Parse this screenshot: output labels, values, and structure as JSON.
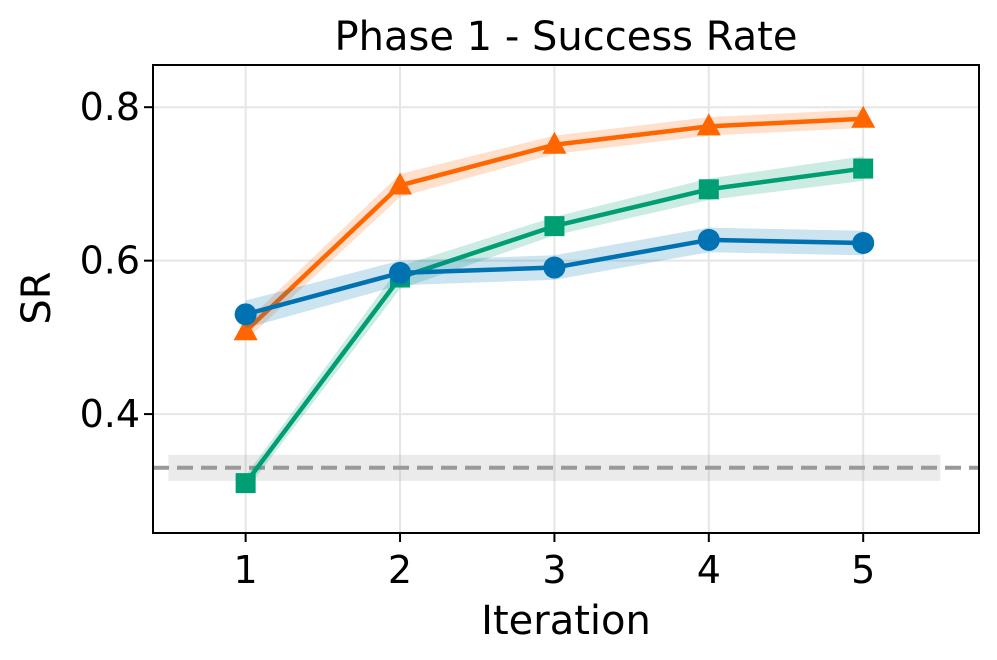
{
  "chart_data": {
    "type": "line",
    "title": "Phase 1 - Success Rate",
    "xlabel": "Iteration",
    "ylabel": "SR",
    "x": [
      1,
      2,
      3,
      4,
      5
    ],
    "xlim": [
      0.4,
      5.75
    ],
    "ylim": [
      0.245,
      0.855
    ],
    "xticks": [
      "1",
      "2",
      "3",
      "4",
      "5"
    ],
    "yticks": [
      0.4,
      0.6,
      0.8
    ],
    "ytick_labels": [
      "0.4",
      "0.6",
      "0.8"
    ],
    "grid": true,
    "series": [
      {
        "name": "orange-triangle",
        "color": "#ff6600",
        "marker": "triangle",
        "values": [
          0.508,
          0.698,
          0.751,
          0.775,
          0.785
        ],
        "band": [
          0.012,
          0.015,
          0.012,
          0.012,
          0.012
        ]
      },
      {
        "name": "green-square",
        "color": "#009e73",
        "marker": "square",
        "values": [
          0.31,
          0.578,
          0.645,
          0.693,
          0.72
        ],
        "band": [
          0.01,
          0.015,
          0.012,
          0.014,
          0.016
        ]
      },
      {
        "name": "blue-circle",
        "color": "#0072b2",
        "marker": "circle",
        "values": [
          0.53,
          0.584,
          0.591,
          0.627,
          0.623
        ],
        "band": [
          0.018,
          0.016,
          0.016,
          0.016,
          0.016
        ]
      }
    ],
    "baseline": {
      "value": 0.33,
      "color": "#999999",
      "band": 0.017,
      "style": "dashed"
    }
  }
}
